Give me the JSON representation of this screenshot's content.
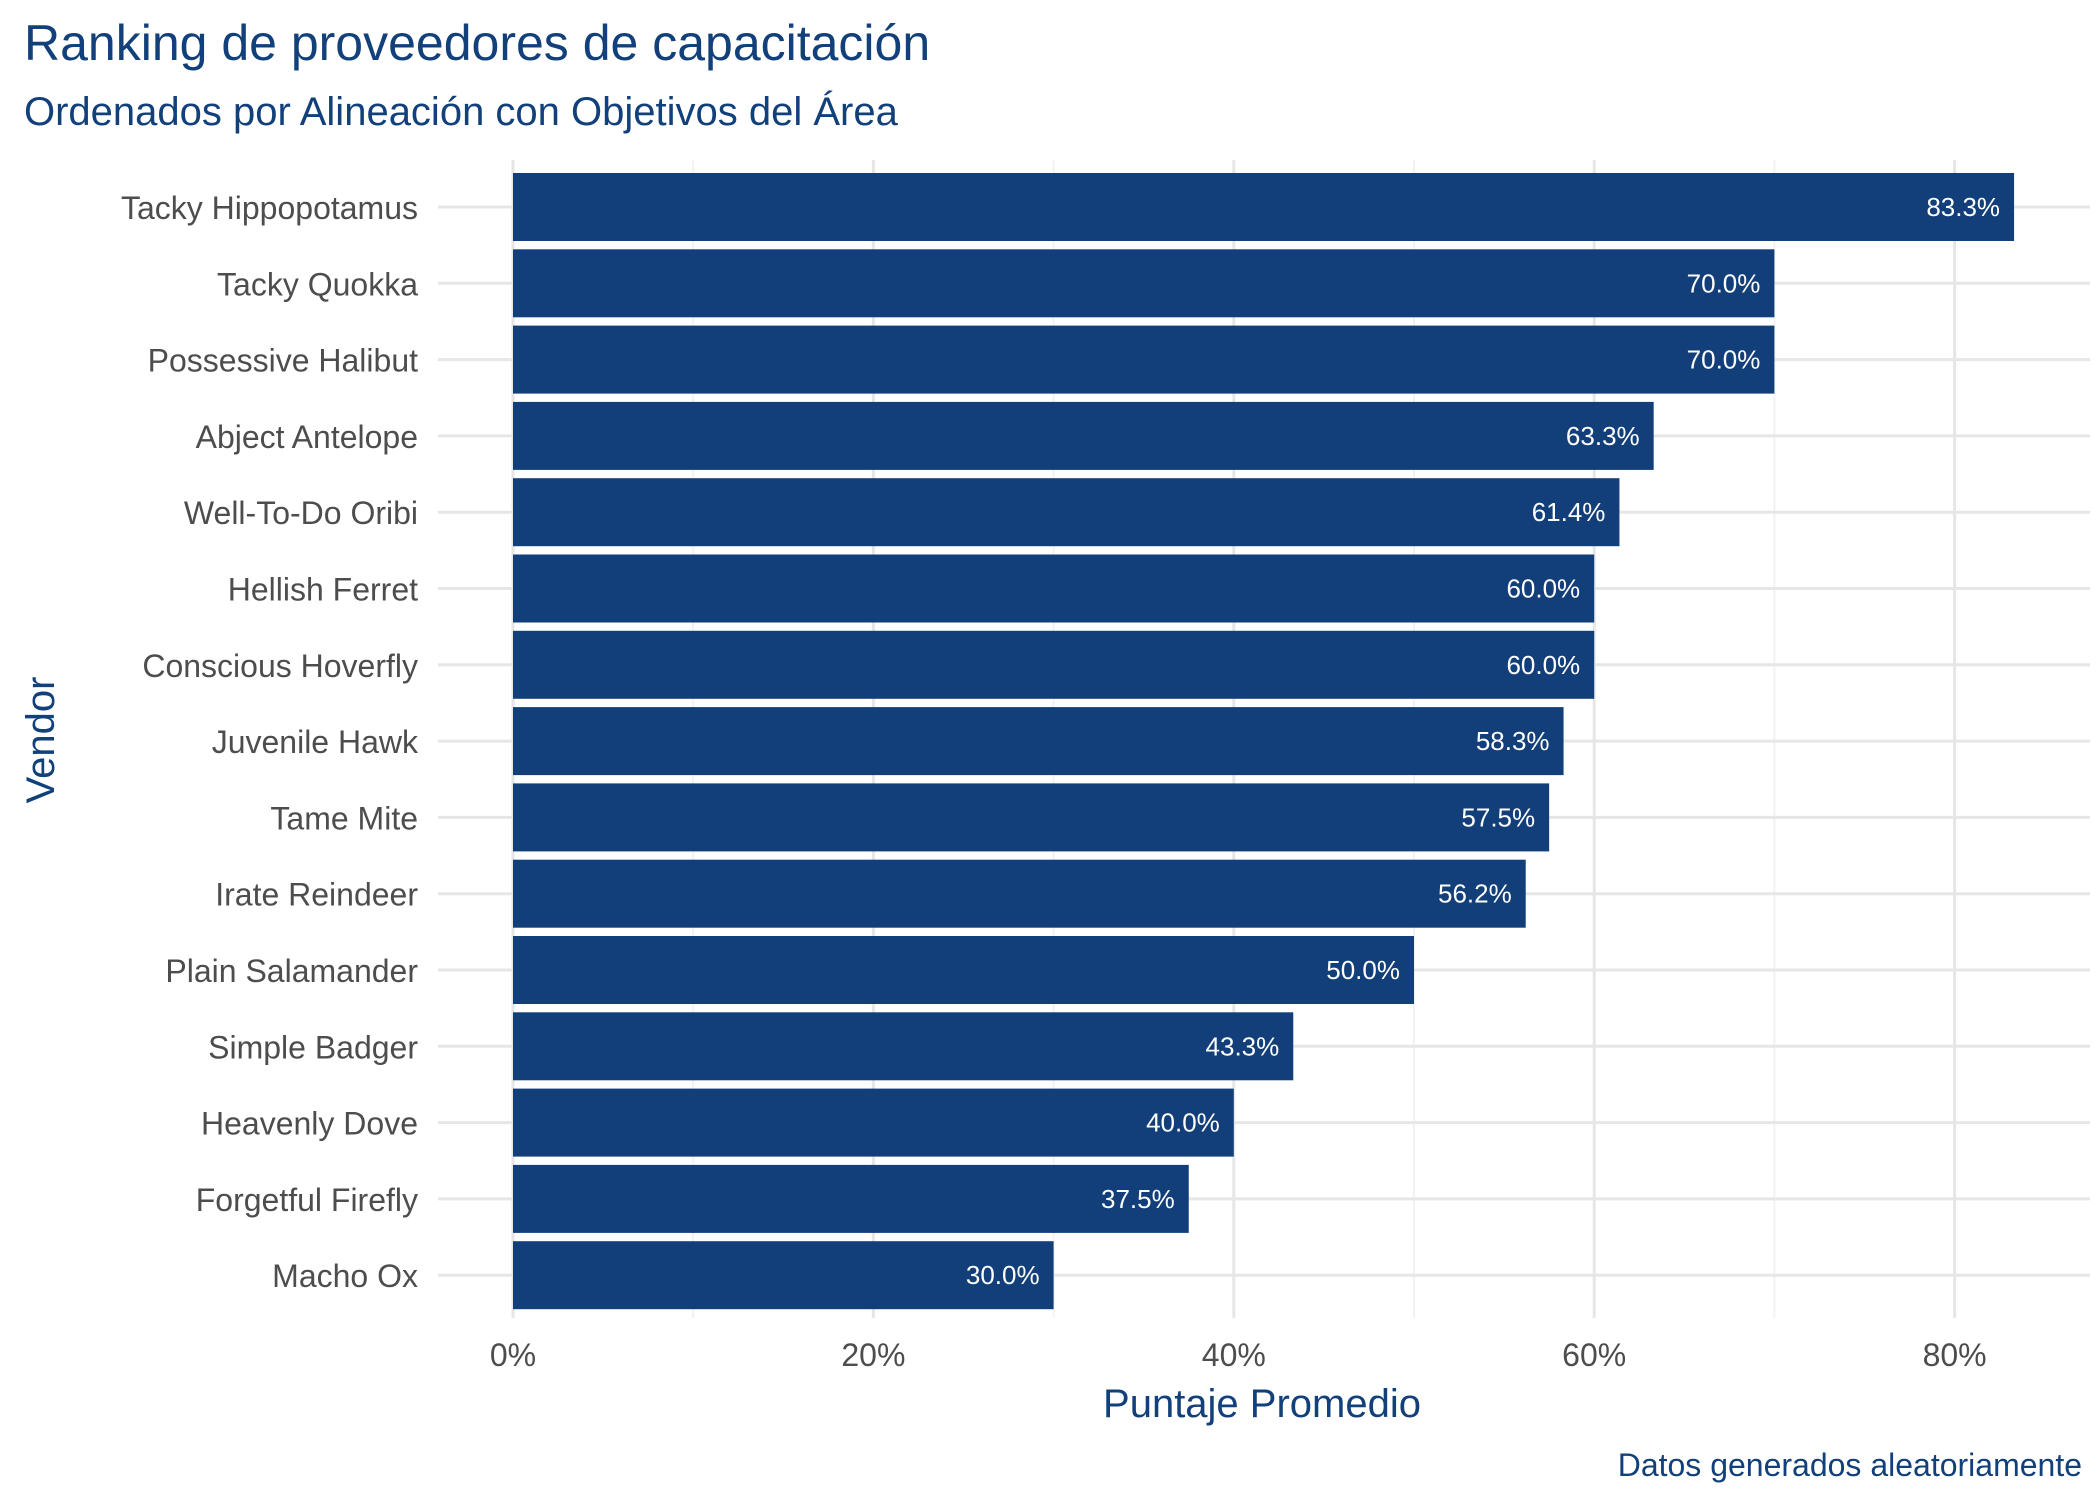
{
  "colors": {
    "bar": "#123f79",
    "title": "#12407a",
    "grid_major": "#e6e6e6",
    "grid_minor": "#f2f2f2",
    "tick_text": "#4d4d4d",
    "bar_label_text": "#ffffff"
  },
  "chart_data": {
    "type": "bar",
    "orientation": "horizontal",
    "title": "Ranking de proveedores de capacitación",
    "subtitle": "Ordenados por Alineación con Objetivos del Área",
    "xlabel": "Puntaje Promedio",
    "ylabel": "Vendor",
    "caption": "Datos generados aleatoriamente",
    "xlim": [
      0,
      0.86
    ],
    "x_ticks": [
      0,
      0.2,
      0.4,
      0.6,
      0.8
    ],
    "x_tick_labels": [
      "0%",
      "20%",
      "40%",
      "60%",
      "80%"
    ],
    "grid": true,
    "legend": "none",
    "categories": [
      "Tacky Hippopotamus",
      "Tacky Quokka",
      "Possessive Halibut",
      "Abject Antelope",
      "Well-To-Do Oribi",
      "Hellish Ferret",
      "Conscious Hoverfly",
      "Juvenile Hawk",
      "Tame Mite",
      "Irate Reindeer",
      "Plain Salamander",
      "Simple Badger",
      "Heavenly Dove",
      "Forgetful Firefly",
      "Macho Ox"
    ],
    "values": [
      0.833,
      0.7,
      0.7,
      0.633,
      0.614,
      0.6,
      0.6,
      0.583,
      0.575,
      0.562,
      0.5,
      0.433,
      0.4,
      0.375,
      0.3
    ],
    "value_labels": [
      "83.3%",
      "70.0%",
      "70.0%",
      "63.3%",
      "61.4%",
      "60.0%",
      "60.0%",
      "58.3%",
      "57.5%",
      "56.2%",
      "50.0%",
      "43.3%",
      "40.0%",
      "37.5%",
      "30.0%"
    ]
  }
}
